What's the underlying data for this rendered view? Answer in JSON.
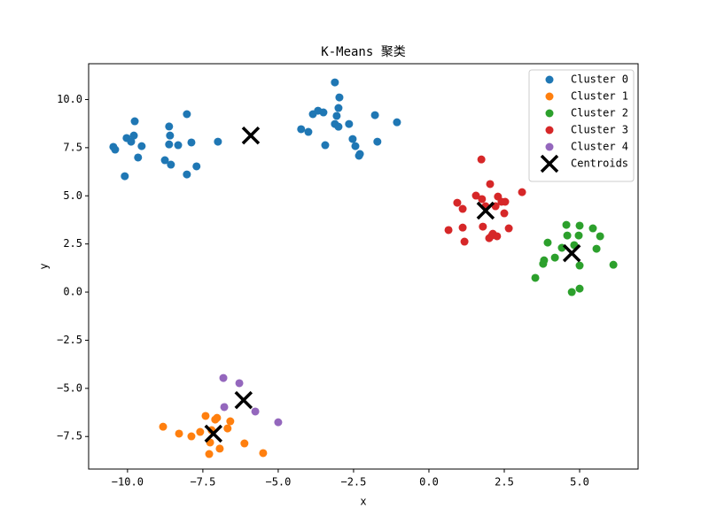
{
  "chart_data": {
    "type": "scatter",
    "title": "K-Means 聚类",
    "x_label": "x",
    "y_label": "y",
    "xlim": [
      -11.29,
      6.94
    ],
    "ylim": [
      -9.19,
      11.86
    ],
    "xticks": [
      {
        "value": -10,
        "label": "−10.0"
      },
      {
        "value": -7.5,
        "label": "−7.5"
      },
      {
        "value": -5,
        "label": "−5.0"
      },
      {
        "value": -2.5,
        "label": "−2.5"
      },
      {
        "value": 0,
        "label": "0.0"
      },
      {
        "value": 2.5,
        "label": "2.5"
      },
      {
        "value": 5,
        "label": "5.0"
      }
    ],
    "yticks": [
      {
        "value": -7.5,
        "label": "−7.5"
      },
      {
        "value": -5,
        "label": "−5.0"
      },
      {
        "value": -2.5,
        "label": "−2.5"
      },
      {
        "value": 0,
        "label": "0.0"
      },
      {
        "value": 2.5,
        "label": "2.5"
      },
      {
        "value": 5,
        "label": "5.0"
      },
      {
        "value": 7.5,
        "label": "7.5"
      },
      {
        "value": 10,
        "label": "10.0"
      }
    ],
    "legend": "upper right",
    "series": [
      {
        "name": "Cluster 0",
        "color": "#1f77b4",
        "marker": "o",
        "x": [
          -10.47,
          -10.41,
          -10.09,
          -10.03,
          -9.88,
          -9.79,
          -9.76,
          -9.65,
          -9.53,
          -8.76,
          -8.62,
          -8.59,
          -8.62,
          -8.56,
          -8.32,
          -8.03,
          -8.03,
          -7.88,
          -7.71,
          -7.0,
          -4.24,
          -4.0,
          -3.85,
          -3.68,
          -3.5,
          -3.44,
          -3.12,
          -3.06,
          -3.0,
          -3.12,
          -2.97,
          -3.0,
          -2.65,
          -2.53,
          -2.44,
          -2.32,
          -2.29,
          -1.79,
          -1.71,
          -1.06
        ],
        "y": [
          7.54,
          7.4,
          6.02,
          8.0,
          7.81,
          8.13,
          8.87,
          6.99,
          7.58,
          6.85,
          8.6,
          8.13,
          7.67,
          6.62,
          7.63,
          9.24,
          6.11,
          7.77,
          6.53,
          7.81,
          8.46,
          8.32,
          9.24,
          9.42,
          9.33,
          7.63,
          10.89,
          9.15,
          9.56,
          8.73,
          10.11,
          8.59,
          8.73,
          7.95,
          7.58,
          7.08,
          7.17,
          9.19,
          7.81,
          8.82
        ]
      },
      {
        "name": "Cluster 1",
        "color": "#ff7f0e",
        "marker": "o",
        "x": [
          -8.82,
          -8.29,
          -7.88,
          -7.59,
          -7.41,
          -7.29,
          -7.26,
          -7.21,
          -7.09,
          -7.03,
          -6.94,
          -6.68,
          -6.59,
          -6.12,
          -5.5
        ],
        "y": [
          -6.99,
          -7.35,
          -7.49,
          -7.26,
          -6.43,
          -8.41,
          -7.81,
          -7.17,
          -6.62,
          -6.53,
          -8.13,
          -7.08,
          -6.71,
          -7.86,
          -8.36
        ]
      },
      {
        "name": "Cluster 2",
        "color": "#2ca02c",
        "marker": "o",
        "x": [
          3.53,
          3.79,
          3.82,
          3.94,
          4.18,
          4.41,
          4.56,
          4.59,
          4.74,
          4.82,
          4.97,
          5.0,
          5.0,
          5.0,
          5.44,
          5.56,
          5.68,
          6.12
        ],
        "y": [
          0.74,
          1.47,
          1.65,
          2.57,
          1.79,
          2.3,
          3.49,
          2.94,
          0,
          2.44,
          2.94,
          3.45,
          1.38,
          0.18,
          3.31,
          2.25,
          2.9,
          1.42
        ]
      },
      {
        "name": "Cluster 3",
        "color": "#d62728",
        "marker": "o",
        "x": [
          0.65,
          0.94,
          1.12,
          1.12,
          1.18,
          1.56,
          1.74,
          1.76,
          1.79,
          1.88,
          2.0,
          2.03,
          2.09,
          2.12,
          2.21,
          2.26,
          2.29,
          2.41,
          2.5,
          2.53,
          2.65,
          3.09
        ],
        "y": [
          3.22,
          4.64,
          4.32,
          3.35,
          2.62,
          5.01,
          6.89,
          4.83,
          3.4,
          4.46,
          2.8,
          5.61,
          2.94,
          3.03,
          4.46,
          2.9,
          4.96,
          4.69,
          4.09,
          4.69,
          3.31,
          5.19
        ]
      },
      {
        "name": "Cluster 4",
        "color": "#9467bd",
        "marker": "o",
        "x": [
          -6.82,
          -6.79,
          -6.29,
          -5.76,
          -5.0
        ],
        "y": [
          -4.46,
          -5.97,
          -4.73,
          -6.2,
          -6.76
        ]
      },
      {
        "name": "Centroids",
        "color": "#000000",
        "marker": "x",
        "x": [
          -5.91,
          -7.15,
          4.74,
          1.88,
          -6.15
        ],
        "y": [
          8.13,
          -7.35,
          2.02,
          4.23,
          -5.61
        ]
      }
    ]
  }
}
